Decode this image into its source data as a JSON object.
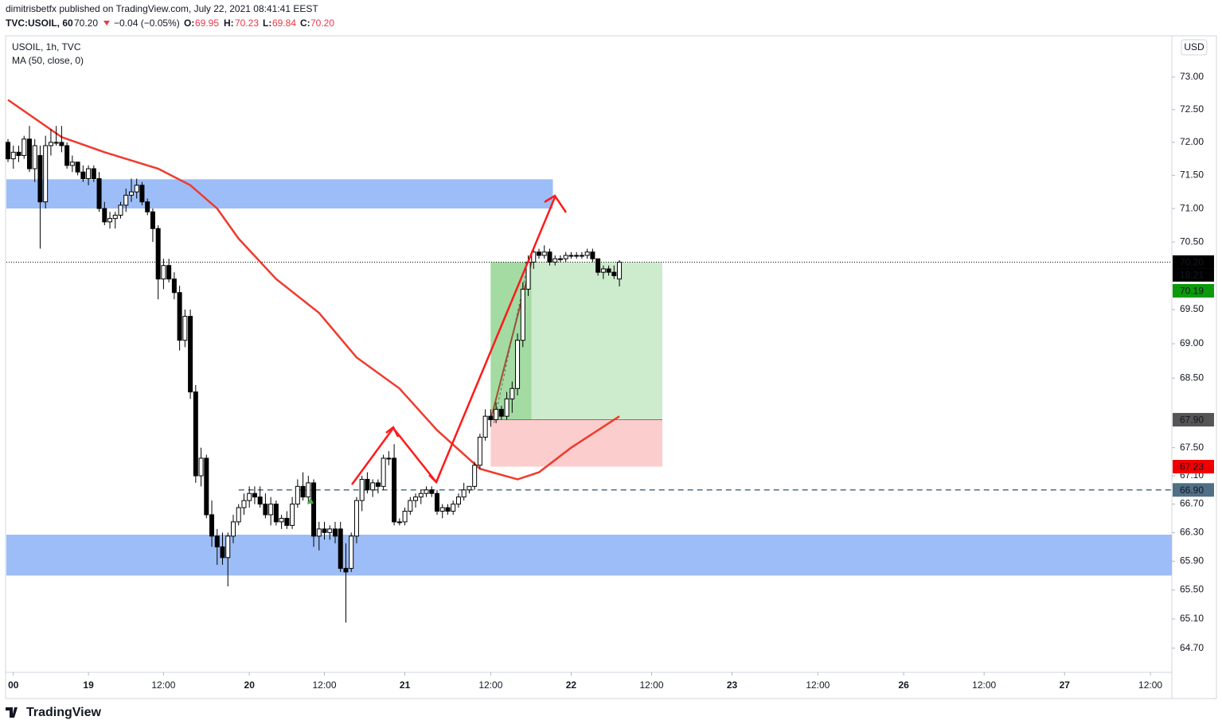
{
  "header": {
    "publisher_line": "dimitrisbetfx published on TradingView.com, July 22, 2021 08:41:41 EEST",
    "symbol": "TVC:USOIL, 60",
    "last": "70.20",
    "change": "−0.04 (−0.05%)",
    "o_label": "O:",
    "o": "69.95",
    "h_label": "H:",
    "h": "70.23",
    "l_label": "L:",
    "l": "69.84",
    "c_label": "C:",
    "c": "70.20"
  },
  "legend": {
    "symbol": "USOIL, 1h, TVC",
    "indicator": "MA (50, close, 0)"
  },
  "currency": "USD",
  "footer": "TradingView",
  "chart_data": {
    "type": "candlestick",
    "log_scale": true,
    "ylim": [
      64.37,
      73.64
    ],
    "yticks": [
      {
        "value": 73,
        "label": "73.00"
      },
      {
        "value": 72.5,
        "label": "72.50"
      },
      {
        "value": 72,
        "label": "72.00"
      },
      {
        "value": 71.5,
        "label": "71.50"
      },
      {
        "value": 71,
        "label": "71.00"
      },
      {
        "value": 70.5,
        "label": "70.50"
      },
      {
        "value": 69.5,
        "label": "69.50"
      },
      {
        "value": 69,
        "label": "69.00"
      },
      {
        "value": 68.5,
        "label": "68.50"
      },
      {
        "value": 67.5,
        "label": "67.50"
      },
      {
        "value": 67.1,
        "label": "67.10"
      },
      {
        "value": 66.7,
        "label": "66.70"
      },
      {
        "value": 66.3,
        "label": "66.30"
      },
      {
        "value": 65.9,
        "label": "65.90"
      },
      {
        "value": 65.5,
        "label": "65.50"
      },
      {
        "value": 65.1,
        "label": "65.10"
      },
      {
        "value": 64.7,
        "label": "64.70"
      }
    ],
    "xlim": [
      -0.3,
      217
    ],
    "xticks": [
      {
        "value": 1,
        "label": "00"
      },
      {
        "value": 15,
        "label": "19"
      },
      {
        "value": 29,
        "label": "12:00"
      },
      {
        "value": 45,
        "label": "20"
      },
      {
        "value": 59,
        "label": "12:00"
      },
      {
        "value": 74,
        "label": "21"
      },
      {
        "value": 90,
        "label": "12:00"
      },
      {
        "value": 105,
        "label": "22"
      },
      {
        "value": 120,
        "label": "12:00"
      },
      {
        "value": 135,
        "label": "23"
      },
      {
        "value": 151,
        "label": "12:00"
      },
      {
        "value": 167,
        "label": "26"
      },
      {
        "value": 182,
        "label": "12:00"
      },
      {
        "value": 197,
        "label": "27"
      },
      {
        "value": 213,
        "label": "12:00"
      }
    ],
    "up_color": "#ffffff",
    "down_color": "#000000",
    "candles": [
      [
        72.0,
        72.05,
        71.7,
        71.75
      ],
      [
        71.75,
        71.95,
        71.6,
        71.85
      ],
      [
        71.85,
        71.95,
        71.7,
        71.8
      ],
      [
        71.8,
        72.1,
        71.75,
        72.05
      ],
      [
        72.05,
        72.25,
        71.55,
        71.6
      ],
      [
        71.6,
        72.05,
        71.4,
        71.95
      ],
      [
        71.8,
        71.95,
        70.4,
        71.1
      ],
      [
        71.1,
        72.1,
        71.0,
        71.95
      ],
      [
        71.95,
        72.2,
        71.8,
        72.0
      ],
      [
        72.0,
        72.25,
        71.95,
        72.0
      ],
      [
        72.0,
        72.25,
        71.85,
        71.95
      ],
      [
        71.95,
        72.0,
        71.6,
        71.65
      ],
      [
        71.65,
        71.8,
        71.55,
        71.7
      ],
      [
        71.7,
        71.7,
        71.5,
        71.55
      ],
      [
        71.55,
        71.65,
        71.4,
        71.45
      ],
      [
        71.45,
        71.65,
        71.35,
        71.6
      ],
      [
        71.6,
        71.65,
        71.4,
        71.45
      ],
      [
        71.45,
        71.55,
        70.95,
        71.0
      ],
      [
        71.0,
        71.1,
        70.75,
        70.8
      ],
      [
        70.8,
        70.95,
        70.7,
        70.85
      ],
      [
        70.85,
        70.95,
        70.7,
        70.9
      ],
      [
        70.9,
        71.1,
        70.85,
        71.05
      ],
      [
        71.05,
        71.3,
        70.95,
        71.2
      ],
      [
        71.2,
        71.45,
        71.1,
        71.25
      ],
      [
        71.25,
        71.45,
        71.15,
        71.35
      ],
      [
        71.35,
        71.4,
        71.05,
        71.1
      ],
      [
        71.1,
        71.15,
        70.9,
        70.95
      ],
      [
        70.95,
        71.0,
        70.5,
        70.7
      ],
      [
        70.7,
        70.75,
        69.65,
        69.95
      ],
      [
        69.95,
        70.25,
        69.8,
        70.15
      ],
      [
        70.15,
        70.25,
        69.9,
        69.95
      ],
      [
        69.95,
        70.05,
        69.65,
        69.75
      ],
      [
        69.75,
        69.85,
        68.9,
        69.05
      ],
      [
        69.05,
        69.5,
        68.95,
        69.4
      ],
      [
        69.4,
        69.5,
        68.2,
        68.3
      ],
      [
        68.3,
        68.4,
        67.0,
        67.1
      ],
      [
        67.1,
        67.5,
        66.95,
        67.35
      ],
      [
        67.35,
        67.4,
        66.5,
        66.55
      ],
      [
        66.55,
        66.75,
        66.1,
        66.25
      ],
      [
        66.25,
        66.35,
        65.85,
        66.1
      ],
      [
        66.1,
        66.3,
        65.85,
        65.95
      ],
      [
        65.95,
        66.3,
        65.55,
        66.25
      ],
      [
        66.25,
        66.55,
        66.15,
        66.45
      ],
      [
        66.45,
        66.7,
        66.4,
        66.65
      ],
      [
        66.65,
        66.85,
        66.55,
        66.75
      ],
      [
        66.75,
        66.95,
        66.65,
        66.85
      ],
      [
        66.85,
        66.95,
        66.7,
        66.8
      ],
      [
        66.8,
        66.95,
        66.65,
        66.7
      ],
      [
        66.7,
        66.85,
        66.5,
        66.55
      ],
      [
        66.55,
        66.8,
        66.4,
        66.7
      ],
      [
        66.7,
        66.75,
        66.4,
        66.45
      ],
      [
        66.45,
        66.55,
        66.35,
        66.5
      ],
      [
        66.5,
        66.6,
        66.35,
        66.4
      ],
      [
        66.4,
        66.8,
        66.35,
        66.7
      ],
      [
        66.7,
        67.05,
        66.65,
        66.95
      ],
      [
        66.95,
        67.15,
        66.75,
        66.8
      ],
      [
        66.8,
        67.1,
        66.7,
        67.0
      ],
      [
        67.0,
        67.05,
        66.1,
        66.25
      ],
      [
        66.25,
        66.45,
        66.05,
        66.35
      ],
      [
        66.35,
        66.45,
        66.2,
        66.3
      ],
      [
        66.3,
        66.4,
        66.2,
        66.35
      ],
      [
        66.35,
        66.45,
        66.15,
        66.25
      ],
      [
        66.35,
        66.45,
        65.75,
        65.8
      ],
      [
        65.8,
        66.15,
        65.05,
        65.75
      ],
      [
        65.8,
        66.3,
        65.75,
        66.25
      ],
      [
        66.25,
        66.8,
        66.15,
        66.75
      ],
      [
        66.75,
        67.1,
        66.6,
        67.05
      ],
      [
        67.05,
        67.15,
        66.85,
        66.9
      ],
      [
        66.9,
        67.05,
        66.8,
        67.0
      ],
      [
        67.0,
        67.05,
        66.85,
        66.95
      ],
      [
        66.95,
        67.4,
        66.9,
        67.35
      ],
      [
        67.35,
        67.45,
        67.25,
        67.35
      ],
      [
        67.35,
        67.55,
        66.4,
        66.45
      ],
      [
        66.45,
        66.5,
        66.4,
        66.45
      ],
      [
        66.45,
        66.65,
        66.4,
        66.6
      ],
      [
        66.6,
        66.8,
        66.55,
        66.75
      ],
      [
        66.75,
        66.85,
        66.65,
        66.8
      ],
      [
        66.8,
        66.9,
        66.7,
        66.85
      ],
      [
        66.85,
        66.95,
        66.8,
        66.9
      ],
      [
        66.9,
        66.95,
        66.8,
        66.85
      ],
      [
        66.85,
        66.9,
        66.55,
        66.6
      ],
      [
        66.6,
        66.7,
        66.5,
        66.65
      ],
      [
        66.65,
        66.7,
        66.55,
        66.6
      ],
      [
        66.6,
        66.75,
        66.55,
        66.7
      ],
      [
        66.7,
        66.85,
        66.65,
        66.8
      ],
      [
        66.8,
        67.0,
        66.75,
        66.9
      ],
      [
        66.9,
        66.95,
        66.85,
        66.95
      ],
      [
        66.95,
        67.3,
        66.9,
        67.25
      ],
      [
        67.25,
        67.7,
        67.2,
        67.65
      ],
      [
        67.65,
        68.05,
        67.6,
        67.95
      ],
      [
        67.95,
        68.05,
        67.8,
        67.9
      ],
      [
        67.9,
        68.15,
        67.85,
        68.05
      ],
      [
        68.05,
        68.1,
        67.9,
        67.95
      ],
      [
        67.95,
        68.3,
        67.9,
        68.2
      ],
      [
        68.2,
        68.45,
        68.0,
        68.35
      ],
      [
        68.35,
        69.15,
        68.25,
        69.05
      ],
      [
        69.05,
        69.9,
        68.95,
        69.8
      ],
      [
        69.8,
        70.3,
        69.7,
        70.2
      ],
      [
        70.2,
        70.4,
        70.1,
        70.35
      ],
      [
        70.35,
        70.4,
        70.25,
        70.3
      ],
      [
        70.3,
        70.45,
        70.25,
        70.35
      ],
      [
        70.35,
        70.4,
        70.15,
        70.2
      ],
      [
        70.2,
        70.3,
        70.15,
        70.25
      ],
      [
        70.25,
        70.3,
        70.2,
        70.25
      ],
      [
        70.25,
        70.35,
        70.2,
        70.3
      ],
      [
        70.3,
        70.35,
        70.25,
        70.3
      ],
      [
        70.3,
        70.35,
        70.25,
        70.3
      ],
      [
        70.3,
        70.35,
        70.25,
        70.3
      ],
      [
        70.3,
        70.4,
        70.25,
        70.35
      ],
      [
        70.35,
        70.4,
        70.2,
        70.25
      ],
      [
        70.25,
        70.25,
        70.0,
        70.05
      ],
      [
        70.05,
        70.15,
        69.95,
        70.1
      ],
      [
        70.1,
        70.15,
        70.0,
        70.05
      ],
      [
        70.05,
        70.15,
        69.95,
        70.0
      ],
      [
        69.95,
        70.23,
        69.84,
        70.2
      ]
    ],
    "ma": {
      "color": "#ef3b2c",
      "x": [
        0,
        10,
        18,
        28,
        34,
        39,
        43,
        50,
        58,
        65,
        73,
        80,
        88,
        95,
        99,
        105,
        114
      ],
      "values": [
        72.65,
        72.08,
        71.85,
        71.6,
        71.35,
        71.0,
        70.55,
        69.95,
        69.45,
        68.8,
        68.35,
        67.75,
        67.2,
        67.05,
        67.15,
        67.5,
        67.95
      ]
    },
    "zones": [
      {
        "color": "#9dbdf8",
        "top": 71.44,
        "bottom": 71.0,
        "x": [
          -0.3,
          101.6
        ]
      },
      {
        "color": "#9dbdf8",
        "top": 66.27,
        "bottom": 65.7,
        "x": [
          -0.3,
          217
        ]
      }
    ],
    "position": {
      "entry": 67.9,
      "target": 70.2,
      "stop": 67.23,
      "x": [
        90,
        122
      ],
      "filled_x": 97.6
    },
    "levels": [
      {
        "value": 66.9,
        "x_start": 43,
        "color": "#4f6f85"
      }
    ],
    "last_price": 70.2,
    "price_labels": [
      {
        "value": 70.2,
        "label": "70.20",
        "color": "#000000",
        "countdown": "18:21"
      },
      {
        "value": 70.19,
        "label": "70.19",
        "color": "#0c9a0c"
      },
      {
        "value": 67.9,
        "label": "67.90",
        "color": "#555555"
      },
      {
        "value": 67.23,
        "label": "67.23",
        "color": "#f00000"
      },
      {
        "value": 66.9,
        "label": "66.90",
        "color": "#4f6f85"
      }
    ]
  }
}
